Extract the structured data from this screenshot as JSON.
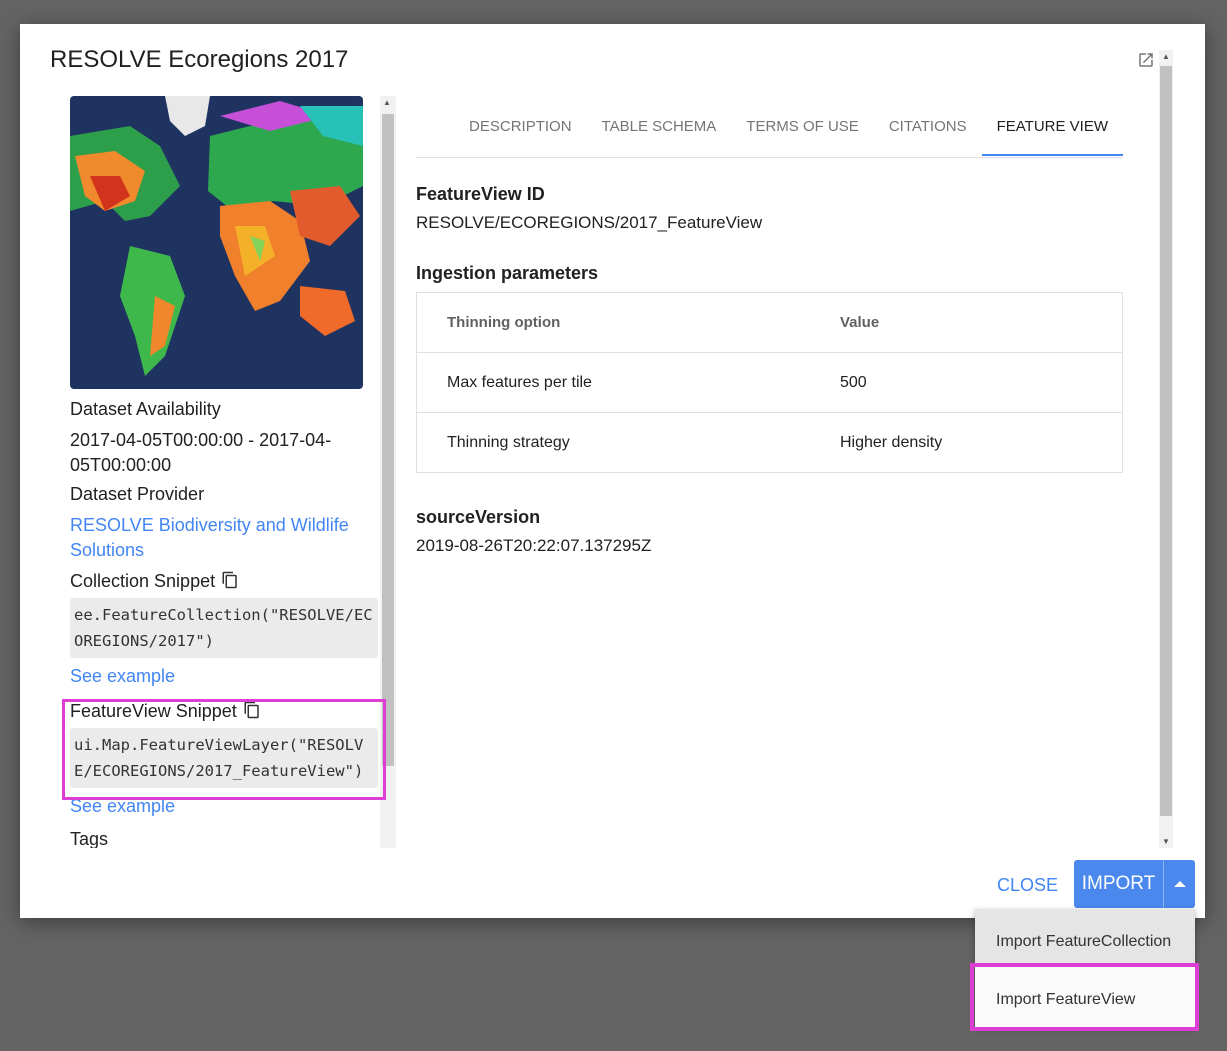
{
  "dialog": {
    "title": "RESOLVE Ecoregions 2017"
  },
  "left": {
    "availability_label": "Dataset Availability",
    "availability_value": "2017-04-05T00:00:00 - 2017-04-05T00:00:00",
    "provider_label": "Dataset Provider",
    "provider_link": "RESOLVE Biodiversity and Wildlife Solutions",
    "collection_snippet_label": "Collection Snippet",
    "collection_snippet": "ee.FeatureCollection(\"RESOLVE/ECOREGIONS/2017\")",
    "see_example_1": "See example",
    "featureview_snippet_label": "FeatureView Snippet",
    "featureview_snippet": "ui.Map.FeatureViewLayer(\"RESOLVE/ECOREGIONS/2017_FeatureView\")",
    "see_example_2": "See example",
    "tags_label": "Tags"
  },
  "tabs": [
    "DESCRIPTION",
    "TABLE SCHEMA",
    "TERMS OF USE",
    "CITATIONS",
    "FEATURE VIEW"
  ],
  "active_tab": "FEATURE VIEW",
  "feature_view": {
    "id_label": "FeatureView ID",
    "id_value": "RESOLVE/ECOREGIONS/2017_FeatureView",
    "ingestion_label": "Ingestion parameters",
    "table": {
      "headers": [
        "Thinning option",
        "Value"
      ],
      "rows": [
        [
          "Max features per tile",
          "500"
        ],
        [
          "Thinning strategy",
          "Higher density"
        ]
      ]
    },
    "source_label": "sourceVersion",
    "source_value": "2019-08-26T20:22:07.137295Z"
  },
  "footer": {
    "close": "CLOSE",
    "import": "IMPORT"
  },
  "import_menu": [
    "Import FeatureCollection",
    "Import FeatureView"
  ],
  "colors": {
    "accent": "#4285f4",
    "highlight": "#dd3fd4"
  }
}
